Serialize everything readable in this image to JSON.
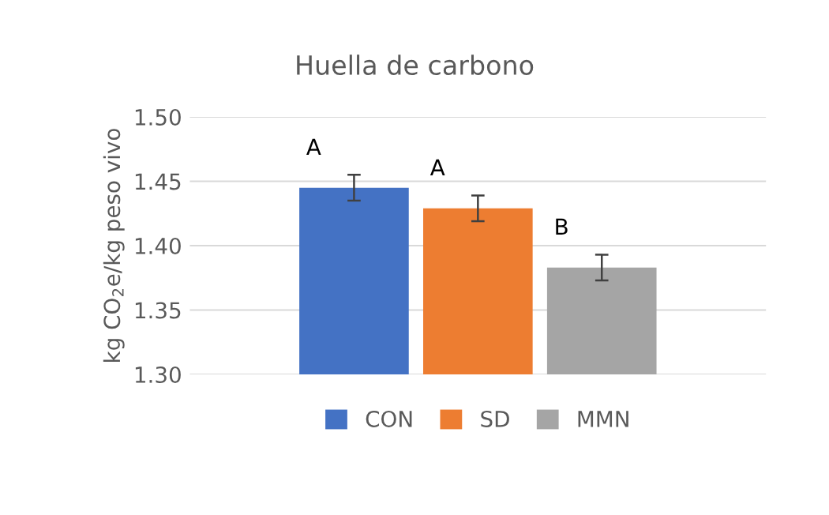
{
  "chart_data": {
    "type": "bar",
    "title": "Huella de carbono",
    "ylabel": "kg CO$_{2}$e/kg peso vivo",
    "categories": [
      null
    ],
    "series": [
      {
        "name": "CON",
        "color": "#4472c4",
        "values": [
          1.445
        ],
        "errors": [
          0.01
        ]
      },
      {
        "name": "SD",
        "color": "#ed7d31",
        "values": [
          1.429
        ],
        "errors": [
          0.01
        ]
      },
      {
        "name": "MMN",
        "color": "#a5a5a5",
        "values": [
          1.383
        ],
        "errors": [
          0.01
        ]
      }
    ],
    "annotations": [
      "A",
      "A",
      "B"
    ],
    "ylim": [
      1.3,
      1.5
    ],
    "yticks": [
      {
        "value": 1.3,
        "label": "1.30"
      },
      1.35,
      {
        "value": 1.4,
        "label": "1.40"
      },
      1.45,
      {
        "value": 1.5,
        "label": "1.50"
      }
    ],
    "grid": "y",
    "legend": "bottom"
  }
}
